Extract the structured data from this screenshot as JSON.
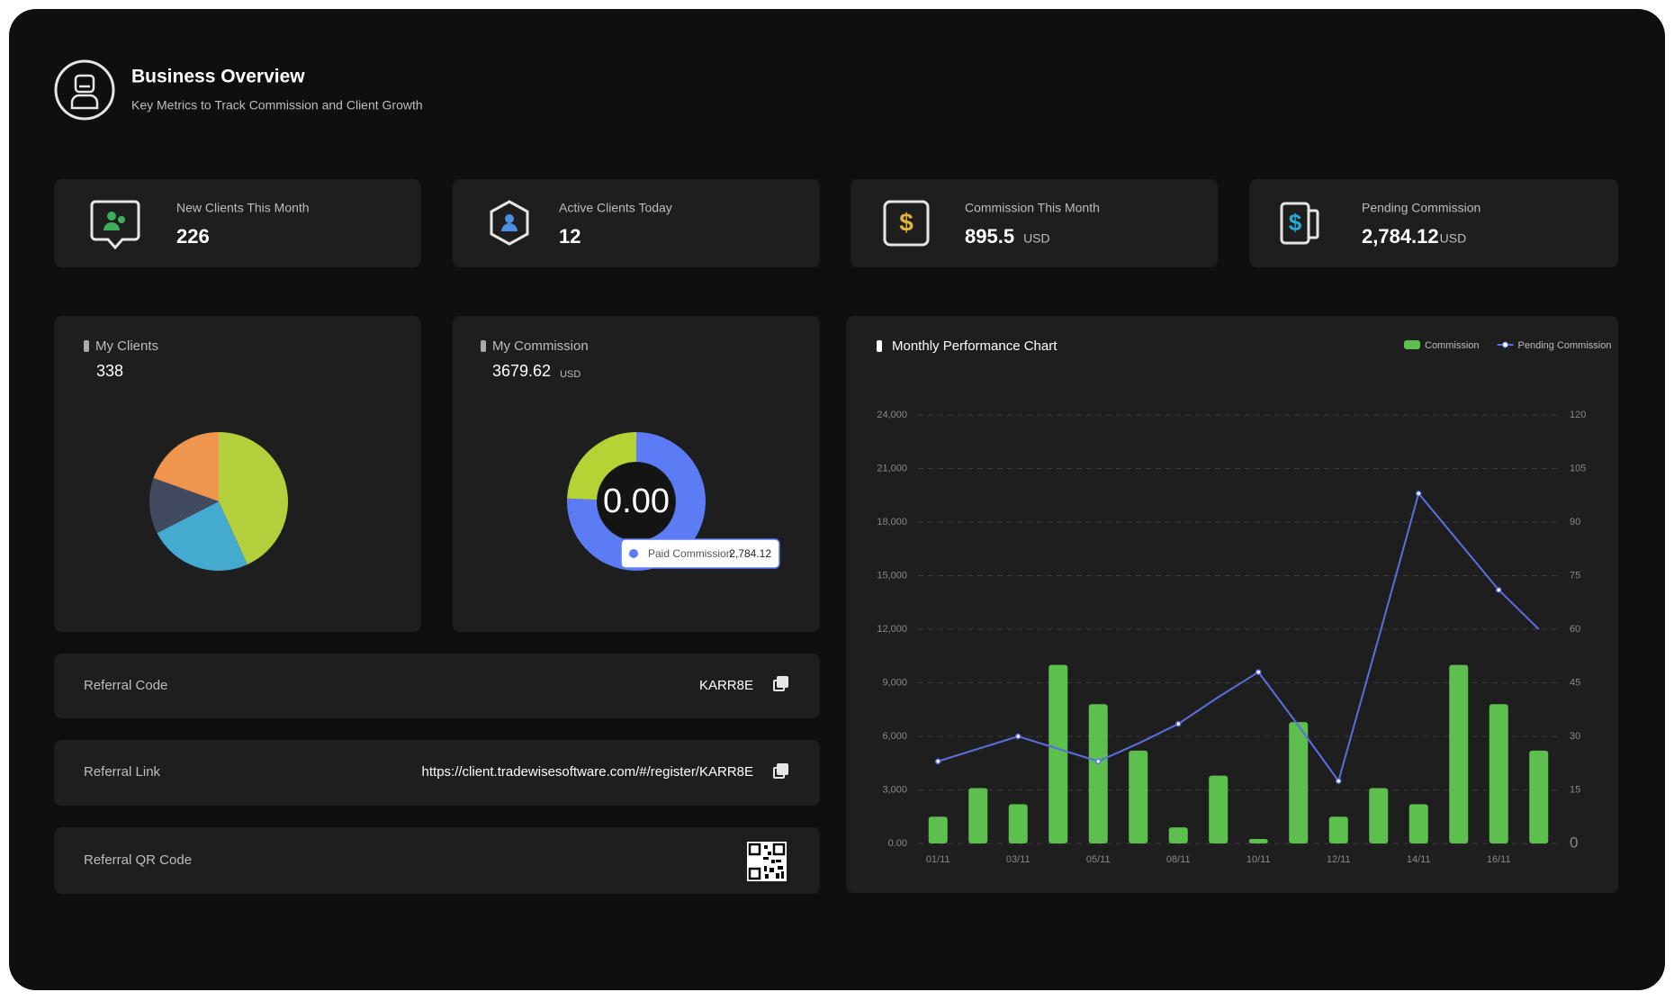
{
  "header": {
    "title": "Business Overview",
    "subtitle": "Key Metrics to Track Commission and Client Growth"
  },
  "stats": [
    {
      "label": "New Clients This Month",
      "value": "226"
    },
    {
      "label": "Active Clients Today",
      "value": "12"
    },
    {
      "label": "Commission This Month",
      "value": "895.5",
      "unit": "USD"
    },
    {
      "label": "Pending Commission",
      "value": "2,784.12",
      "unit": "USD"
    }
  ],
  "referral": [
    {
      "label": "Referral Code",
      "value": "KARR8E"
    },
    {
      "label": "Referral Link",
      "value": "https://client.tradewisesoftware.com/#/register/KARR8E"
    },
    {
      "label": "Referral QR Code"
    }
  ],
  "chart_data": [
    {
      "type": "pie",
      "title": "My Clients",
      "total": "338",
      "values": [
        146,
        82,
        44,
        66
      ],
      "colors": [
        "#b3cf3b",
        "#45aacf",
        "#414a5e",
        "#f0954e"
      ]
    },
    {
      "type": "donut",
      "title": "My Commission",
      "total": "3679.62",
      "unit": "USD",
      "center_label": "0.00",
      "values": [
        2784.12,
        895.5
      ],
      "colors": [
        "#5b7cf5",
        "#b5d334"
      ],
      "tooltip": {
        "name": "Paid Commission",
        "label": "2,784.12"
      }
    },
    {
      "type": "bar",
      "title": "Monthly Performance Chart",
      "categories": [
        "01/11",
        null,
        "03/11",
        null,
        "05/11",
        null,
        "08/11",
        null,
        "10/11",
        null,
        "12/11",
        null,
        "14/11",
        null,
        "16/11",
        null
      ],
      "series": [
        {
          "name": "Commission",
          "color": "#5cbf4e",
          "values": [
            1500,
            3100,
            2200,
            10000,
            7800,
            5200,
            900,
            3800,
            250,
            6800,
            1500,
            3100,
            2200,
            10000,
            7800,
            5200
          ]
        },
        {
          "name": "Pending Commission",
          "type": "line",
          "axis": "y2",
          "color": "#5b6fe0",
          "values": [
            23,
            26.5,
            30,
            26.5,
            23,
            28,
            33.5,
            41,
            48,
            33,
            17.5,
            57.5,
            98,
            84.5,
            71,
            60
          ]
        }
      ],
      "ylim": [
        0,
        24000
      ],
      "yticks": [
        {
          "value": 0,
          "label": "0.00"
        },
        {
          "value": 3000,
          "label": "3,000"
        },
        {
          "value": 6000,
          "label": "6,000"
        },
        {
          "value": 9000,
          "label": "9,000"
        },
        {
          "value": 12000,
          "label": "12,000"
        },
        {
          "value": 15000,
          "label": "15,000"
        },
        {
          "value": 18000,
          "label": "18,000"
        },
        {
          "value": 21000,
          "label": "21,000"
        },
        {
          "value": 24000,
          "label": "24,000"
        }
      ],
      "y2lim": [
        0,
        120
      ],
      "y2ticks": [
        0,
        15,
        30,
        45,
        60,
        75,
        90,
        105,
        120
      ],
      "grid": true,
      "legend": "top-right"
    }
  ]
}
